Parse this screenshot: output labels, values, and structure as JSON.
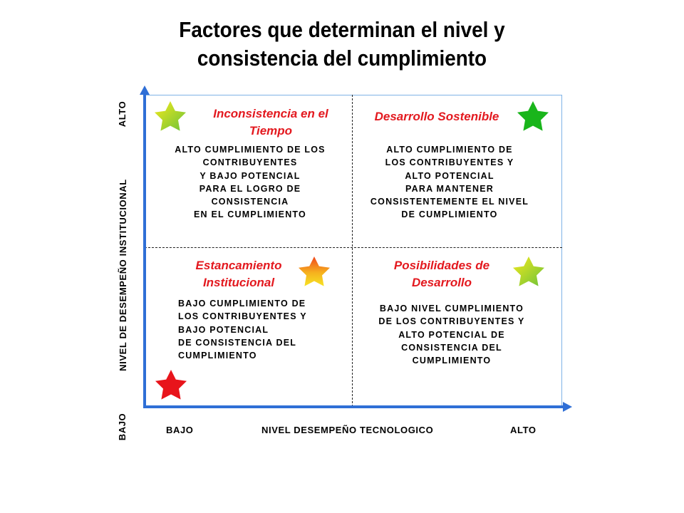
{
  "title": {
    "line1": "Factores que determinan el nivel y",
    "line2": "consistencia del cumplimiento"
  },
  "y_axis": {
    "title": "NIVEL DE DESEMPEÑO INSTITUCIONAL",
    "high": "ALTO",
    "low": "BAJO"
  },
  "x_axis": {
    "title": "NIVEL DESEMPEÑO TECNOLOGICO",
    "low": "BAJO",
    "high": "ALTO"
  },
  "quadrants": {
    "top_left": {
      "title": [
        "Inconsistencia  en el",
        "Tiempo"
      ],
      "body": [
        "ALTO CUMPLIMIENTO DE LOS",
        "CONTRIBUYENTES",
        "Y BAJO POTENCIAL",
        "PARA EL LOGRO DE",
        "CONSISTENCIA",
        "EN EL CUMPLIMIENTO"
      ],
      "star": "yellow-green-star-icon"
    },
    "top_right": {
      "title": [
        "Desarrollo Sostenible"
      ],
      "body": [
        "ALTO CUMPLIMIENTO DE",
        "LOS CONTRIBUYENTES  Y",
        "ALTO POTENCIAL",
        "PARA MANTENER",
        "CONSISTENTEMENTE EL NIVEL",
        "DE CUMPLIMIENTO"
      ],
      "star": "green-star-icon"
    },
    "bottom_left": {
      "title": [
        "Estancamiento",
        "Institucional"
      ],
      "body": [
        "BAJO CUMPLIMIENTO DE",
        "LOS CONTRIBUYENTES Y",
        "BAJO POTENCIAL",
        "DE  CONSISTENCIA DEL",
        "CUMPLIMIENTO"
      ],
      "star": "orange-star-icon"
    },
    "bottom_right": {
      "title": [
        "Posibilidades de",
        "Desarrollo"
      ],
      "body": [
        "BAJO NIVEL CUMPLIMIENTO",
        "DE LOS CONTRIBUYENTES Y",
        "ALTO POTENCIAL DE",
        "CONSISTENCIA DEL",
        "CUMPLIMIENTO"
      ],
      "star": "yellow-green-star-icon"
    }
  },
  "origin_star": "red-star-icon",
  "colors": {
    "axis": "#2f6fd6",
    "quadrant_title": "#e3191f",
    "grid_border": "#7fb2e6",
    "star_green": "#19b51b",
    "star_red": "#e8141b"
  }
}
